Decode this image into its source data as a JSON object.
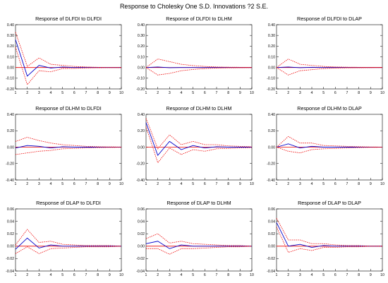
{
  "title": "Response to Cholesky One S.D. Innovations ?2 S.E.",
  "colors": {
    "response": "#0000cc",
    "band": "#ee0000",
    "zero": "#ee0000",
    "axis": "#000000"
  },
  "chart_data": [
    {
      "type": "line",
      "title": "Response of DLFDI to DLFDI",
      "x": [
        1,
        2,
        3,
        4,
        5,
        6,
        7,
        8,
        9,
        10
      ],
      "ylim": [
        -0.2,
        0.4
      ],
      "yticks": [
        -0.2,
        -0.1,
        0.0,
        0.1,
        0.2,
        0.3,
        0.4
      ],
      "ytick_labels": [
        "-0.20",
        "-0.10",
        "0.00",
        "0.10",
        "0.20",
        "0.30",
        "0.40"
      ],
      "xticks": [
        1,
        2,
        3,
        4,
        5,
        6,
        7,
        8,
        9,
        10
      ],
      "series": [
        {
          "role": "response",
          "values": [
            0.26,
            -0.08,
            0.02,
            -0.005,
            0.005,
            0,
            0,
            0,
            0,
            0
          ]
        },
        {
          "role": "upper",
          "values": [
            0.33,
            0.01,
            0.09,
            0.03,
            0.02,
            0.01,
            0.005,
            0.002,
            0.001,
            0.001
          ]
        },
        {
          "role": "lower",
          "values": [
            0.19,
            -0.16,
            -0.03,
            -0.04,
            -0.01,
            -0.008,
            -0.004,
            -0.002,
            -0.001,
            -0.001
          ]
        }
      ]
    },
    {
      "type": "line",
      "title": "Response of DLFDI to DLHM",
      "x": [
        1,
        2,
        3,
        4,
        5,
        6,
        7,
        8,
        9,
        10
      ],
      "ylim": [
        -0.2,
        0.4
      ],
      "yticks": [
        -0.2,
        -0.1,
        0.0,
        0.1,
        0.2,
        0.3,
        0.4
      ],
      "ytick_labels": [
        "-0.20",
        "-0.10",
        "0.00",
        "0.10",
        "0.20",
        "0.30",
        "0.40"
      ],
      "xticks": [
        1,
        2,
        3,
        4,
        5,
        6,
        7,
        8,
        9,
        10
      ],
      "series": [
        {
          "role": "response",
          "values": [
            0,
            0.005,
            -0.002,
            0,
            0,
            0,
            0,
            0,
            0,
            0
          ]
        },
        {
          "role": "upper",
          "values": [
            0,
            0.08,
            0.055,
            0.03,
            0.018,
            0.01,
            0.005,
            0.003,
            0.002,
            0.001
          ]
        },
        {
          "role": "lower",
          "values": [
            0,
            -0.07,
            -0.055,
            -0.03,
            -0.018,
            -0.01,
            -0.005,
            -0.003,
            -0.002,
            -0.001
          ]
        }
      ]
    },
    {
      "type": "line",
      "title": "Response of DLFDI to DLAP",
      "x": [
        1,
        2,
        3,
        4,
        5,
        6,
        7,
        8,
        9,
        10
      ],
      "ylim": [
        -0.2,
        0.4
      ],
      "yticks": [
        -0.2,
        -0.1,
        0.0,
        0.1,
        0.2,
        0.3,
        0.4
      ],
      "ytick_labels": [
        "-0.20",
        "-0.10",
        "0.00",
        "0.10",
        "0.20",
        "0.30",
        "0.40"
      ],
      "xticks": [
        1,
        2,
        3,
        4,
        5,
        6,
        7,
        8,
        9,
        10
      ],
      "series": [
        {
          "role": "response",
          "values": [
            0,
            0.005,
            -0.002,
            0.002,
            0,
            0,
            0,
            0,
            0,
            0
          ]
        },
        {
          "role": "upper",
          "values": [
            0,
            0.08,
            0.03,
            0.02,
            0.01,
            0.005,
            0.003,
            0.002,
            0.001,
            0
          ]
        },
        {
          "role": "lower",
          "values": [
            0,
            -0.07,
            -0.03,
            -0.02,
            -0.01,
            -0.005,
            -0.003,
            -0.002,
            -0.001,
            0
          ]
        }
      ]
    },
    {
      "type": "line",
      "title": "Response of DLHM to DLFDI",
      "x": [
        1,
        2,
        3,
        4,
        5,
        6,
        7,
        8,
        9,
        10
      ],
      "ylim": [
        -0.4,
        0.4
      ],
      "yticks": [
        -0.4,
        -0.2,
        0.0,
        0.2,
        0.4
      ],
      "ytick_labels": [
        "-0.40",
        "-0.20",
        "0.00",
        "0.20",
        "0.40"
      ],
      "xticks": [
        1,
        2,
        3,
        4,
        5,
        6,
        7,
        8,
        9,
        10
      ],
      "series": [
        {
          "role": "response",
          "values": [
            -0.01,
            0.02,
            0.01,
            -0.01,
            0.005,
            0,
            0,
            0,
            0,
            0
          ]
        },
        {
          "role": "upper",
          "values": [
            0.07,
            0.12,
            0.08,
            0.05,
            0.03,
            0.02,
            0.01,
            0.005,
            0.003,
            0.002
          ]
        },
        {
          "role": "lower",
          "values": [
            -0.09,
            -0.07,
            -0.05,
            -0.04,
            -0.02,
            -0.015,
            -0.01,
            -0.005,
            -0.003,
            -0.002
          ]
        }
      ]
    },
    {
      "type": "line",
      "title": "Response of DLHM to DLHM",
      "x": [
        1,
        2,
        3,
        4,
        5,
        6,
        7,
        8,
        9,
        10
      ],
      "ylim": [
        -0.4,
        0.4
      ],
      "yticks": [
        -0.4,
        -0.2,
        0.0,
        0.2,
        0.4
      ],
      "ytick_labels": [
        "-0.40",
        "-0.20",
        "0.00",
        "0.20",
        "0.40"
      ],
      "xticks": [
        1,
        2,
        3,
        4,
        5,
        6,
        7,
        8,
        9,
        10
      ],
      "series": [
        {
          "role": "response",
          "values": [
            0.3,
            -0.1,
            0.07,
            -0.03,
            0.02,
            -0.01,
            0.005,
            0,
            0,
            0
          ]
        },
        {
          "role": "upper",
          "values": [
            0.35,
            -0.02,
            0.15,
            0.03,
            0.07,
            0.03,
            0.03,
            0.015,
            0.01,
            0.005
          ]
        },
        {
          "role": "lower",
          "values": [
            0.25,
            -0.19,
            -0.01,
            -0.09,
            -0.03,
            -0.05,
            -0.02,
            -0.015,
            -0.01,
            -0.005
          ]
        }
      ]
    },
    {
      "type": "line",
      "title": "Response of DLHM to DLAP",
      "x": [
        1,
        2,
        3,
        4,
        5,
        6,
        7,
        8,
        9,
        10
      ],
      "ylim": [
        -0.4,
        0.4
      ],
      "yticks": [
        -0.4,
        -0.2,
        0.0,
        0.2,
        0.4
      ],
      "ytick_labels": [
        "-0.40",
        "-0.20",
        "0.00",
        "0.20",
        "0.40"
      ],
      "xticks": [
        1,
        2,
        3,
        4,
        5,
        6,
        7,
        8,
        9,
        10
      ],
      "series": [
        {
          "role": "response",
          "values": [
            0,
            0.04,
            -0.01,
            0.01,
            0,
            0,
            0,
            0,
            0,
            0
          ]
        },
        {
          "role": "upper",
          "values": [
            0,
            0.13,
            0.05,
            0.05,
            0.02,
            0.015,
            0.01,
            0.005,
            0.002,
            0.001
          ]
        },
        {
          "role": "lower",
          "values": [
            0,
            -0.05,
            -0.07,
            -0.03,
            -0.02,
            -0.015,
            -0.01,
            -0.005,
            -0.002,
            -0.001
          ]
        }
      ]
    },
    {
      "type": "line",
      "title": "Response of DLAP to DLFDI",
      "x": [
        1,
        2,
        3,
        4,
        5,
        6,
        7,
        8,
        9,
        10
      ],
      "ylim": [
        -0.04,
        0.06
      ],
      "yticks": [
        -0.04,
        -0.02,
        0.0,
        0.02,
        0.04,
        0.06
      ],
      "ytick_labels": [
        "-0.04",
        "-0.02",
        "0.00",
        "0.02",
        "0.04",
        "0.06"
      ],
      "xticks": [
        1,
        2,
        3,
        4,
        5,
        6,
        7,
        8,
        9,
        10
      ],
      "series": [
        {
          "role": "response",
          "values": [
            -0.005,
            0.013,
            -0.003,
            0.002,
            0,
            0,
            0,
            0,
            0,
            0
          ]
        },
        {
          "role": "upper",
          "values": [
            0.002,
            0.027,
            0.006,
            0.008,
            0.003,
            0.002,
            0.001,
            0.001,
            0.001,
            0
          ]
        },
        {
          "role": "lower",
          "values": [
            -0.012,
            -0.001,
            -0.012,
            -0.004,
            -0.003,
            -0.002,
            -0.001,
            -0.001,
            -0.001,
            0
          ]
        }
      ]
    },
    {
      "type": "line",
      "title": "Response of DLAP to DLHM",
      "x": [
        1,
        2,
        3,
        4,
        5,
        6,
        7,
        8,
        9,
        10
      ],
      "ylim": [
        -0.04,
        0.06
      ],
      "yticks": [
        -0.04,
        -0.02,
        0.0,
        0.02,
        0.04,
        0.06
      ],
      "ytick_labels": [
        "-0.04",
        "-0.02",
        "0.00",
        "0.02",
        "0.04",
        "0.06"
      ],
      "xticks": [
        1,
        2,
        3,
        4,
        5,
        6,
        7,
        8,
        9,
        10
      ],
      "series": [
        {
          "role": "response",
          "values": [
            0.004,
            0.008,
            -0.004,
            0.002,
            0,
            0,
            0,
            0,
            0,
            0
          ]
        },
        {
          "role": "upper",
          "values": [
            0.012,
            0.02,
            0.005,
            0.008,
            0.004,
            0.003,
            0.002,
            0.001,
            0.001,
            0
          ]
        },
        {
          "role": "lower",
          "values": [
            -0.004,
            -0.004,
            -0.013,
            -0.004,
            -0.004,
            -0.003,
            -0.002,
            -0.001,
            -0.001,
            0
          ]
        }
      ]
    },
    {
      "type": "line",
      "title": "Response of DLAP to DLAP",
      "x": [
        1,
        2,
        3,
        4,
        5,
        6,
        7,
        8,
        9,
        10
      ],
      "ylim": [
        -0.04,
        0.06
      ],
      "yticks": [
        -0.04,
        -0.02,
        0.0,
        0.02,
        0.04,
        0.06
      ],
      "ytick_labels": [
        "-0.04",
        "-0.02",
        "0.00",
        "0.02",
        "0.04",
        "0.06"
      ],
      "xticks": [
        1,
        2,
        3,
        4,
        5,
        6,
        7,
        8,
        9,
        10
      ],
      "series": [
        {
          "role": "response",
          "values": [
            0.038,
            0,
            0.003,
            -0.002,
            0.001,
            0,
            0,
            0,
            0,
            0
          ]
        },
        {
          "role": "upper",
          "values": [
            0.045,
            0.01,
            0.01,
            0.004,
            0.004,
            0.002,
            0.001,
            0.001,
            0,
            0
          ]
        },
        {
          "role": "lower",
          "values": [
            0.031,
            -0.01,
            -0.004,
            -0.007,
            -0.002,
            -0.002,
            -0.001,
            -0.001,
            0,
            0
          ]
        }
      ]
    }
  ]
}
